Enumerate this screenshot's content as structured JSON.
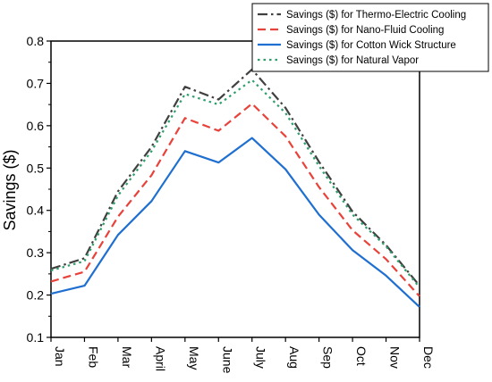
{
  "chart_data": {
    "type": "line",
    "title": "",
    "xlabel": "",
    "ylabel": "Savings ($)",
    "categories": [
      "Jan",
      "Feb",
      "Mar",
      "April",
      "May",
      "June",
      "July",
      "Aug",
      "Sep",
      "Oct",
      "Nov",
      "Dec"
    ],
    "ylim": [
      0.1,
      0.8
    ],
    "yticks": [
      "0.1",
      "0.2",
      "0.3",
      "0.4",
      "0.5",
      "0.6",
      "0.7",
      "0.8"
    ],
    "grid": false,
    "legend_position": "top-right",
    "series": [
      {
        "name": "Savings ($) for Thermo-Electric Cooling",
        "color": "#404040",
        "dash": "dash-dot",
        "values": [
          0.262,
          0.287,
          0.445,
          0.55,
          0.692,
          0.662,
          0.733,
          0.642,
          0.515,
          0.397,
          0.318,
          0.222
        ]
      },
      {
        "name": "Savings ($) for Nano-Fluid Cooling",
        "color": "#e8423a",
        "dash": "dash",
        "values": [
          0.232,
          0.255,
          0.385,
          0.483,
          0.618,
          0.588,
          0.652,
          0.575,
          0.455,
          0.353,
          0.285,
          0.197
        ]
      },
      {
        "name": "Savings ($) for Cotton Wick Structure",
        "color": "#1f6fd1",
        "dash": "solid",
        "values": [
          0.203,
          0.222,
          0.342,
          0.422,
          0.54,
          0.513,
          0.571,
          0.497,
          0.39,
          0.306,
          0.246,
          0.172
        ]
      },
      {
        "name": "Savings ($) for Natural Vapor",
        "color": "#2e9e6a",
        "dash": "dot",
        "values": [
          0.258,
          0.28,
          0.435,
          0.54,
          0.675,
          0.65,
          0.708,
          0.63,
          0.505,
          0.39,
          0.315,
          0.218
        ]
      }
    ]
  }
}
